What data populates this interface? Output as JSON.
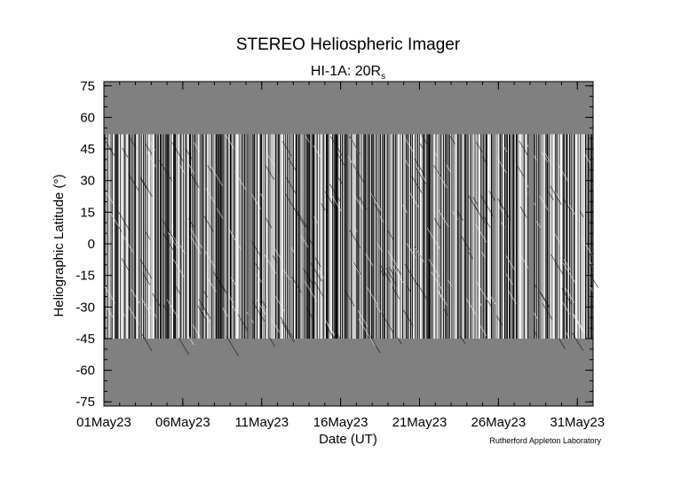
{
  "chart_data": {
    "type": "heatmap",
    "title": "STEREO Heliospheric Imager",
    "subtitle_main": "HI-1A: 20R",
    "subtitle_sub": "s",
    "xlabel": "Date (UT)",
    "ylabel": "Heliographic Latitude (°)",
    "credit": "Rutherford Appleton Laboratory",
    "x_tick_labels": [
      "01May23",
      "06May23",
      "11May23",
      "16May23",
      "21May23",
      "26May23",
      "31May23"
    ],
    "x_tick_values": [
      0,
      5,
      10,
      15,
      20,
      25,
      30
    ],
    "xlim": [
      0,
      31
    ],
    "y_ticks": [
      75,
      60,
      45,
      30,
      15,
      0,
      -15,
      -30,
      -45,
      -60,
      -75
    ],
    "ylim": [
      -77,
      77
    ],
    "observed_latitude_range": [
      -45,
      52
    ],
    "data_gaps_days": [
      [
        9.15,
        9.35
      ],
      [
        26.9,
        27.25
      ]
    ],
    "colors": {
      "background_fill": "#808080",
      "frame": "#000000"
    }
  }
}
